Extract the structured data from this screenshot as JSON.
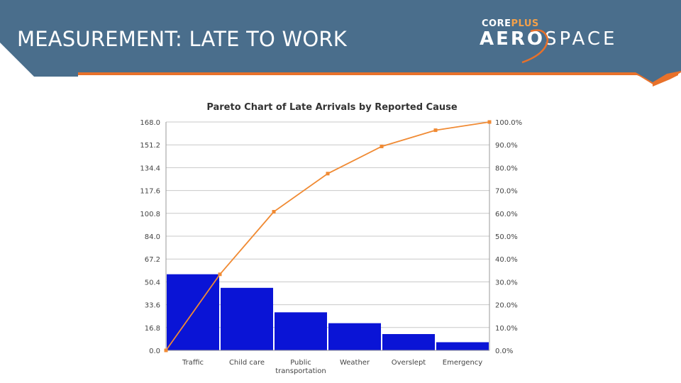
{
  "slide": {
    "title": "MEASUREMENT: LATE TO WORK",
    "logo": {
      "top": "CORE",
      "top_accent": "PLUS",
      "main_left": "AERO",
      "main_right": "SPACE"
    },
    "colors": {
      "header": "#4a6e8c",
      "accent": "#e8712a",
      "bars": "#0a14d6",
      "line": "#f08a33",
      "grid": "#c8c8c8"
    }
  },
  "chart_data": {
    "type": "bar",
    "title": "Pareto Chart of Late Arrivals by Reported Cause",
    "categories": [
      "Traffic",
      "Child care",
      "Public transportation",
      "Weather",
      "Overslept",
      "Emergency"
    ],
    "category_labels": [
      [
        "Traffic"
      ],
      [
        "Child care"
      ],
      [
        "Public",
        "transportation"
      ],
      [
        "Weather"
      ],
      [
        "Overslept"
      ],
      [
        "Emergency"
      ]
    ],
    "values": [
      56,
      46,
      28,
      20,
      12,
      6
    ],
    "cumulative_percent": [
      0,
      33.3,
      60.7,
      77.4,
      89.3,
      96.4,
      100
    ],
    "ylim": [
      0,
      168
    ],
    "y2lim": [
      0,
      100
    ],
    "y_ticks": [
      "0.0",
      "16.8",
      "33.6",
      "50.4",
      "67.2",
      "84.0",
      "100.8",
      "117.6",
      "134.4",
      "151.2",
      "168.0"
    ],
    "y2_ticks": [
      "0.0%",
      "10.0%",
      "20.0%",
      "30.0%",
      "40.0%",
      "50.0%",
      "60.0%",
      "70.0%",
      "80.0%",
      "90.0%",
      "100.0%"
    ],
    "xlabel": "",
    "ylabel": "",
    "grid": true
  }
}
